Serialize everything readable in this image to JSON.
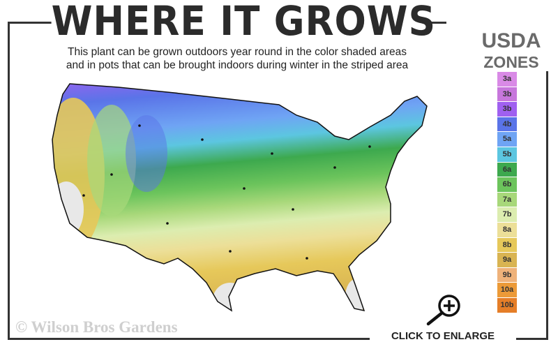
{
  "header": {
    "title": "WHERE IT GROWS",
    "subtitle_line1": "This plant can be grown outdoors year round in the color shaded areas",
    "subtitle_line2": "and in pots that can be brought indoors during winter in the striped area"
  },
  "legend": {
    "title_line1": "USDA",
    "title_line2": "ZONES",
    "zones": [
      {
        "label": "3a",
        "color": "#d98ae6"
      },
      {
        "label": "3b",
        "color": "#c777dc"
      },
      {
        "label": "3b",
        "color": "#a060f0"
      },
      {
        "label": "4b",
        "color": "#5a74e8"
      },
      {
        "label": "5a",
        "color": "#6fa4f4"
      },
      {
        "label": "5b",
        "color": "#5cc6e0"
      },
      {
        "label": "6a",
        "color": "#3da94e"
      },
      {
        "label": "6b",
        "color": "#6cc45c"
      },
      {
        "label": "7a",
        "color": "#a8d87a"
      },
      {
        "label": "7b",
        "color": "#dcedb0"
      },
      {
        "label": "8a",
        "color": "#ecdf98"
      },
      {
        "label": "8b",
        "color": "#e6c85a"
      },
      {
        "label": "9a",
        "color": "#d9b452"
      },
      {
        "label": "9b",
        "color": "#efb27a"
      },
      {
        "label": "10a",
        "color": "#ec9a38"
      },
      {
        "label": "10b",
        "color": "#e57e28"
      }
    ]
  },
  "footer": {
    "copyright": "© Wilson Bros Gardens",
    "enlarge_label": "CLICK TO ENLARGE"
  },
  "icons": {
    "enlarge": "magnifier-plus-icon"
  }
}
